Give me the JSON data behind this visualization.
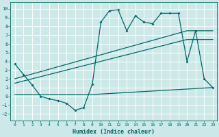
{
  "xlabel": "Humidex (Indice chaleur)",
  "xlim": [
    -0.5,
    23.5
  ],
  "ylim": [
    -2.8,
    10.8
  ],
  "xticks": [
    0,
    1,
    2,
    3,
    4,
    5,
    6,
    7,
    8,
    9,
    10,
    11,
    12,
    13,
    14,
    15,
    16,
    17,
    18,
    19,
    20,
    21,
    22,
    23
  ],
  "yticks": [
    -2,
    -1,
    0,
    1,
    2,
    3,
    4,
    5,
    6,
    7,
    8,
    9,
    10
  ],
  "bg_color": "#cce8e8",
  "line_color": "#006666",
  "grid_color": "#b8d8d8",
  "series1_x": [
    0,
    1,
    2,
    3,
    4,
    5,
    6,
    7,
    8,
    9,
    10,
    11,
    12,
    13,
    14,
    15,
    16,
    17,
    18,
    19,
    20,
    21,
    22,
    23
  ],
  "series1_y": [
    3.7,
    2.5,
    1.3,
    0.0,
    -0.3,
    -0.5,
    -0.8,
    -1.6,
    -1.3,
    1.4,
    8.5,
    9.8,
    9.9,
    7.5,
    9.2,
    8.5,
    8.3,
    9.5,
    9.5,
    9.5,
    4.0,
    7.5,
    2.0,
    1.0
  ],
  "series2_x": [
    0,
    20,
    23
  ],
  "series2_y": [
    2.0,
    7.5,
    7.5
  ],
  "series3_x": [
    0,
    20,
    23
  ],
  "series3_y": [
    1.5,
    6.5,
    6.5
  ],
  "series4_x": [
    0,
    9,
    23
  ],
  "series4_y": [
    0.2,
    0.2,
    1.0
  ],
  "marker_style": "D",
  "marker_size": 2.0
}
